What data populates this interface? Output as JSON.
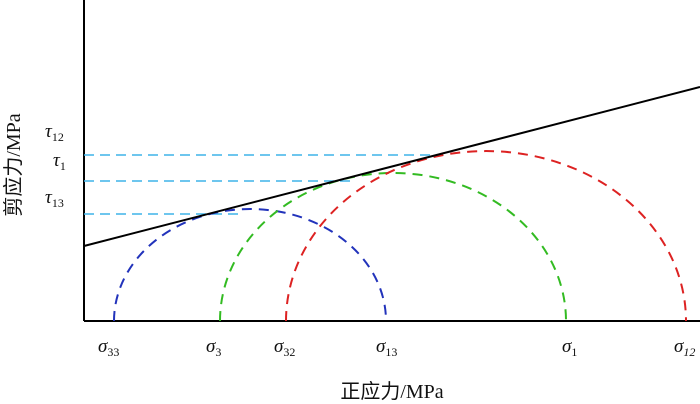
{
  "axes": {
    "x_label": "正应力/MPa",
    "y_label": "剪应力/MPa"
  },
  "sigma_labels": [
    {
      "sym": "σ",
      "sub": "33",
      "sub_italic": false
    },
    {
      "sym": "σ",
      "sub": "3",
      "sub_italic": false
    },
    {
      "sym": "σ",
      "sub": "32",
      "sub_italic": false
    },
    {
      "sym": "σ",
      "sub": "13",
      "sub_italic": false
    },
    {
      "sym": "σ",
      "sub": "1",
      "sub_italic": false
    },
    {
      "sym": "σ",
      "sub": "12",
      "sub_italic": true
    }
  ],
  "tau_labels": [
    {
      "sym": "τ",
      "sub": "12"
    },
    {
      "sym": "τ",
      "sub": "1"
    },
    {
      "sym": "τ",
      "sub": "13"
    }
  ],
  "circles": [
    {
      "name": "circle-sigma33-sigma13",
      "color": "#2233bb"
    },
    {
      "name": "circle-sigma3-sigma1",
      "color": "#33bb22"
    },
    {
      "name": "circle-sigma32-sigma12",
      "color": "#dd2222"
    }
  ],
  "envelope_color": "#000000",
  "guide_color": "#3fb3e8"
}
